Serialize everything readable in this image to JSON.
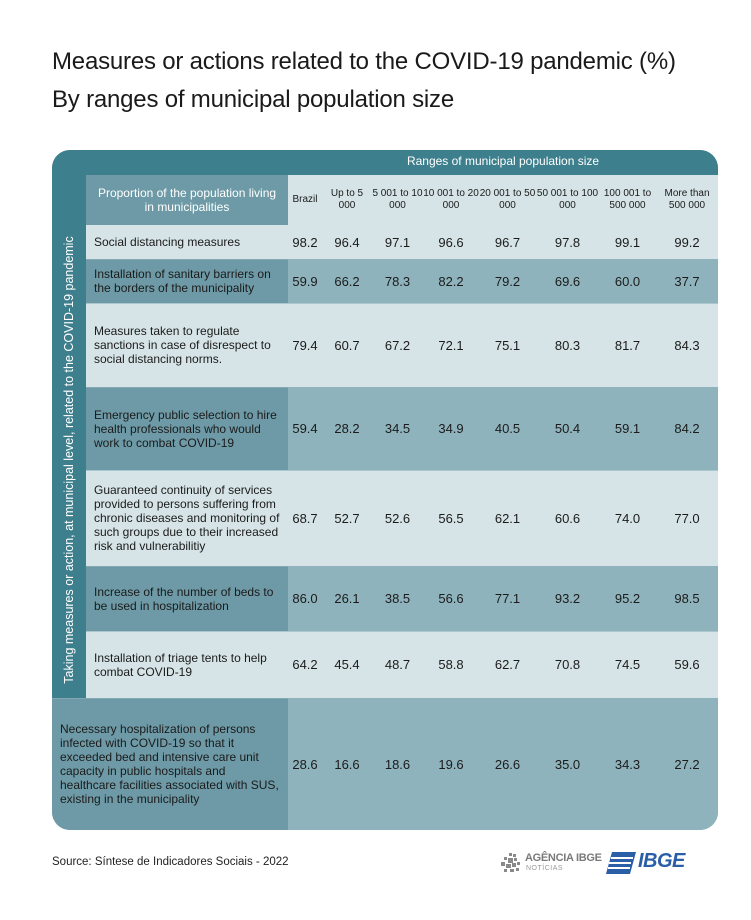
{
  "title_line1": "Measures or actions related to the COVID-19 pandemic (%)",
  "title_line2": "By ranges of municipal population size",
  "chart_data": {
    "type": "table",
    "title": "Measures or actions related to the COVID-19 pandemic (%)",
    "subtitle": "By ranges of municipal population size",
    "column_group_header": "Ranges of municipal population size",
    "row_header": "Proportion of the  population living in municipalities",
    "row_group_label": "Taking measures or action, at municipal level, related to the COVID-19 pandemic",
    "columns": [
      "Brazil",
      "Up to 5 000",
      "5 001 to 10 000",
      "10 001 to 20 000",
      "20 001 to 50 000",
      "50 001 to 100 000",
      "100 001 to 500 000",
      "More than 500 000"
    ],
    "rows": [
      {
        "label": "Social distancing measures",
        "values": [
          "98.2",
          "96.4",
          "97.1",
          "96.6",
          "96.7",
          "97.8",
          "99.1",
          "99.2"
        ]
      },
      {
        "label": "Installation of sanitary barriers on the borders of the municipality",
        "values": [
          "59.9",
          "66.2",
          "78.3",
          "82.2",
          "79.2",
          "69.6",
          "60.0",
          "37.7"
        ]
      },
      {
        "label": "Measures taken to regulate sanctions in case of disrespect to social distancing norms.",
        "values": [
          "79.4",
          "60.7",
          "67.2",
          "72.1",
          "75.1",
          "80.3",
          "81.7",
          "84.3"
        ]
      },
      {
        "label": "Emergency public selection to hire health professionals who would work to combat COVID-19",
        "values": [
          "59.4",
          "28.2",
          "34.5",
          "34.9",
          "40.5",
          "50.4",
          "59.1",
          "84.2"
        ]
      },
      {
        "label": "Guaranteed continuity of services provided to persons suffering from chronic diseases and monitoring of such groups due to their increased risk and vulnerabilitiy",
        "values": [
          "68.7",
          "52.7",
          "52.6",
          "56.5",
          "62.1",
          "60.6",
          "74.0",
          "77.0"
        ]
      },
      {
        "label": "Increase of the number of beds to be used in hospitalization",
        "values": [
          "86.0",
          "26.1",
          "38.5",
          "56.6",
          "77.1",
          "93.2",
          "95.2",
          "98.5"
        ]
      },
      {
        "label": "Installation of triage tents to help combat COVID-19",
        "values": [
          "64.2",
          "45.4",
          "48.7",
          "58.8",
          "62.7",
          "70.8",
          "74.5",
          "59.6"
        ]
      },
      {
        "label": "Necessary hospitalization of persons infected with COVID-19 so that it exceeded bed and intensive care unit capacity in public hospitals and healthcare facilities associated with SUS, existing in the municipality",
        "values": [
          "28.6",
          "16.6",
          "18.6",
          "19.6",
          "26.6",
          "35.0",
          "34.3",
          "27.2"
        ]
      }
    ]
  },
  "colors": {
    "dark_teal": "#3e7f8e",
    "mid_teal": "#6d9aa6",
    "light_teal": "#d6e4e7",
    "pale_teal": "#8fb3bc",
    "ibge_blue": "#2a5fa8"
  },
  "footer": {
    "source": "Source: Síntese de Indicadores Sociais - 2022",
    "agencia_name": "AGÊNCIA IBGE",
    "agencia_sub": "NOTÍCIAS",
    "ibge_logo_text": "IBGE"
  }
}
